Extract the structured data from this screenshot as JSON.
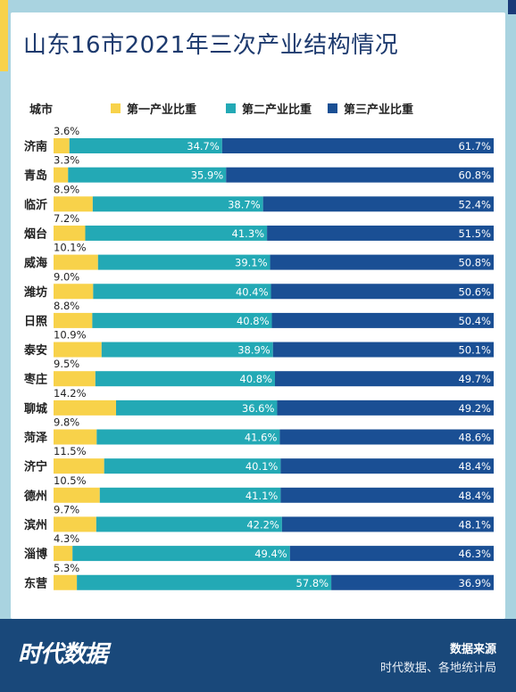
{
  "chart_data": {
    "type": "bar",
    "stacked": true,
    "orientation": "horizontal",
    "title": "山东16市2021年三次产业结构情况",
    "category_header": "城市",
    "categories": [
      "济南",
      "青岛",
      "临沂",
      "烟台",
      "威海",
      "潍坊",
      "日照",
      "泰安",
      "枣庄",
      "聊城",
      "菏泽",
      "济宁",
      "德州",
      "滨州",
      "淄博",
      "东营"
    ],
    "series": [
      {
        "name": "第一产业比重",
        "color": "#f8d24a",
        "values": [
          3.6,
          3.3,
          8.9,
          7.2,
          10.1,
          9.0,
          8.8,
          10.9,
          9.5,
          14.2,
          9.8,
          11.5,
          10.5,
          9.7,
          4.3,
          5.3
        ],
        "labels": [
          "3.6%",
          "3.3%",
          "8.9%",
          "7.2%",
          "10.1%",
          "9.0%",
          "8.8%",
          "10.9%",
          "9.5%",
          "14.2%",
          "9.8%",
          "11.5%",
          "10.5%",
          "9.7%",
          "4.3%",
          "5.3%"
        ]
      },
      {
        "name": "第二产业比重",
        "color": "#23a9b5",
        "values": [
          34.7,
          35.9,
          38.7,
          41.3,
          39.1,
          40.4,
          40.8,
          38.9,
          40.8,
          36.6,
          41.6,
          40.1,
          41.1,
          42.2,
          49.4,
          57.8
        ],
        "labels": [
          "34.7%",
          "35.9%",
          "38.7%",
          "41.3%",
          "39.1%",
          "40.4%",
          "40.8%",
          "38.9%",
          "40.8%",
          "36.6%",
          "41.6%",
          "40.1%",
          "41.1%",
          "42.2%",
          "49.4%",
          "57.8%"
        ]
      },
      {
        "name": "第三产业比重",
        "color": "#1a4f94",
        "values": [
          61.7,
          60.8,
          52.4,
          51.5,
          50.8,
          50.6,
          50.4,
          50.1,
          49.7,
          49.2,
          48.6,
          48.4,
          48.4,
          48.1,
          46.3,
          36.9
        ],
        "labels": [
          "61.7%",
          "60.8%",
          "52.4%",
          "51.5%",
          "50.8%",
          "50.6%",
          "50.4%",
          "50.1%",
          "49.7%",
          "49.2%",
          "48.6%",
          "48.4%",
          "48.4%",
          "48.1%",
          "46.3%",
          "36.9%"
        ]
      }
    ],
    "legend_position": "top",
    "grid": false
  },
  "footer": {
    "brand": "时代数据",
    "source_title": "数据来源",
    "source_text": "时代数据、各地统计局"
  }
}
